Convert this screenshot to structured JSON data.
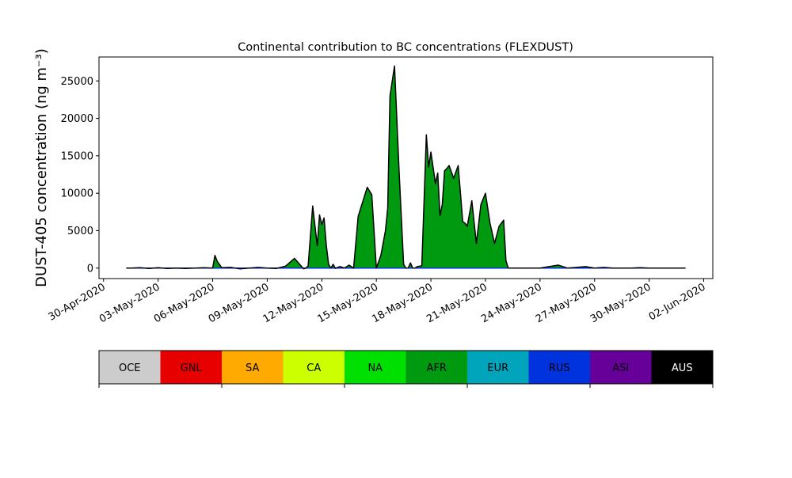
{
  "chart_data": {
    "type": "area",
    "title": "Continental contribution to BC concentrations (FLEXDUST)",
    "xlabel": "",
    "ylabel": "DUST-405 concentration (ng m⁻³)",
    "ylim": [
      -1400,
      28200
    ],
    "xlim": [
      "2020-04-29T18:00",
      "2020-06-02T12:00"
    ],
    "yticks": [
      0,
      5000,
      10000,
      15000,
      20000,
      25000
    ],
    "xticks": [
      "2020-04-30",
      "2020-05-03",
      "2020-05-06",
      "2020-05-09",
      "2020-05-12",
      "2020-05-15",
      "2020-05-18",
      "2020-05-21",
      "2020-05-24",
      "2020-05-27",
      "2020-05-30",
      "2020-06-02"
    ],
    "xtick_labels": [
      "30-Apr-2020",
      "03-May-2020",
      "06-May-2020",
      "09-May-2020",
      "12-May-2020",
      "15-May-2020",
      "18-May-2020",
      "21-May-2020",
      "24-May-2020",
      "27-May-2020",
      "30-May-2020",
      "02-Jun-2020"
    ],
    "grid": false,
    "legend_placement": "below, as a color bar with labels",
    "dominant_series": "AFR",
    "series": [
      {
        "name": "OCE",
        "color": "#cccccc"
      },
      {
        "name": "GNL",
        "color": "#e60000"
      },
      {
        "name": "SA",
        "color": "#ffaa00"
      },
      {
        "name": "CA",
        "color": "#ccff00"
      },
      {
        "name": "NA",
        "color": "#00e000"
      },
      {
        "name": "AFR",
        "color": "#009a10"
      },
      {
        "name": "EUR",
        "color": "#00a5bb"
      },
      {
        "name": "RUS",
        "color": "#0033dd"
      },
      {
        "name": "ASI",
        "color": "#660099"
      },
      {
        "name": "AUS",
        "color": "#000000"
      }
    ],
    "x": [
      "2020-05-01T06:00",
      "2020-05-01T12:00",
      "2020-05-02T00:00",
      "2020-05-02T12:00",
      "2020-05-03T00:00",
      "2020-05-03T12:00",
      "2020-05-04T00:00",
      "2020-05-04T12:00",
      "2020-05-05T00:00",
      "2020-05-05T12:00",
      "2020-05-06T00:00",
      "2020-05-06T03:00",
      "2020-05-06T06:00",
      "2020-05-06T12:00",
      "2020-05-07T00:00",
      "2020-05-07T12:00",
      "2020-05-08T00:00",
      "2020-05-08T12:00",
      "2020-05-09T00:00",
      "2020-05-09T12:00",
      "2020-05-10T00:00",
      "2020-05-10T12:00",
      "2020-05-11T00:00",
      "2020-05-11T03:00",
      "2020-05-11T06:00",
      "2020-05-11T12:00",
      "2020-05-11T18:00",
      "2020-05-11T21:00",
      "2020-05-12T00:00",
      "2020-05-12T03:00",
      "2020-05-12T06:00",
      "2020-05-12T09:00",
      "2020-05-12T12:00",
      "2020-05-12T15:00",
      "2020-05-12T18:00",
      "2020-05-12T21:00",
      "2020-05-13T00:00",
      "2020-05-13T06:00",
      "2020-05-13T12:00",
      "2020-05-13T18:00",
      "2020-05-14T00:00",
      "2020-05-14T12:00",
      "2020-05-14T18:00",
      "2020-05-15T00:00",
      "2020-05-15T06:00",
      "2020-05-15T12:00",
      "2020-05-15T15:00",
      "2020-05-15T18:00",
      "2020-05-16T00:00",
      "2020-05-16T06:00",
      "2020-05-16T12:00",
      "2020-05-16T15:00",
      "2020-05-16T18:00",
      "2020-05-16T21:00",
      "2020-05-17T00:00",
      "2020-05-17T03:00",
      "2020-05-17T06:00",
      "2020-05-17T12:00",
      "2020-05-17T18:00",
      "2020-05-17T21:00",
      "2020-05-18T00:00",
      "2020-05-18T06:00",
      "2020-05-18T09:00",
      "2020-05-18T12:00",
      "2020-05-18T15:00",
      "2020-05-18T18:00",
      "2020-05-18T21:00",
      "2020-05-19T00:00",
      "2020-05-19T06:00",
      "2020-05-19T12:00",
      "2020-05-19T15:00",
      "2020-05-19T18:00",
      "2020-05-19T21:00",
      "2020-05-20T00:00",
      "2020-05-20T06:00",
      "2020-05-20T12:00",
      "2020-05-20T18:00",
      "2020-05-21T00:00",
      "2020-05-21T06:00",
      "2020-05-21T12:00",
      "2020-05-21T18:00",
      "2020-05-22T00:00",
      "2020-05-22T03:00",
      "2020-05-22T06:00",
      "2020-05-22T12:00",
      "2020-05-22T18:00",
      "2020-05-23T00:00",
      "2020-05-23T12:00",
      "2020-05-24T00:00",
      "2020-05-24T12:00",
      "2020-05-25T00:00",
      "2020-05-25T12:00",
      "2020-05-26T00:00",
      "2020-05-26T12:00",
      "2020-05-27T00:00",
      "2020-05-27T12:00",
      "2020-05-28T00:00",
      "2020-05-28T12:00",
      "2020-05-29T00:00",
      "2020-05-29T12:00",
      "2020-05-30T00:00",
      "2020-05-30T12:00",
      "2020-05-31T00:00",
      "2020-05-31T12:00",
      "2020-06-01T00:00"
    ],
    "total": [
      0,
      0,
      50,
      -50,
      50,
      -50,
      0,
      -50,
      0,
      50,
      0,
      1700,
      900,
      50,
      100,
      -100,
      0,
      100,
      0,
      -50,
      250,
      1300,
      -100,
      0,
      300,
      8300,
      3000,
      7100,
      5800,
      6700,
      3000,
      500,
      0,
      500,
      -50,
      100,
      200,
      0,
      400,
      0,
      6900,
      10800,
      9800,
      0,
      1700,
      5000,
      8000,
      23000,
      27000,
      13000,
      500,
      0,
      0,
      700,
      0,
      0,
      200,
      300,
      17800,
      13500,
      15500,
      11300,
      12700,
      7000,
      8500,
      13000,
      13300,
      13700,
      12000,
      13700,
      10000,
      6200,
      6000,
      5600,
      9000,
      3300,
      8500,
      10000,
      6000,
      3300,
      5600,
      6400,
      1000,
      0,
      0,
      0,
      0,
      0,
      0,
      200,
      400,
      0,
      100,
      200,
      0,
      100,
      0,
      0,
      0,
      50,
      0,
      0,
      0,
      0,
      0
    ]
  },
  "legend": {
    "labels": [
      "OCE",
      "GNL",
      "SA",
      "CA",
      "NA",
      "AFR",
      "EUR",
      "RUS",
      "ASI",
      "AUS"
    ]
  }
}
